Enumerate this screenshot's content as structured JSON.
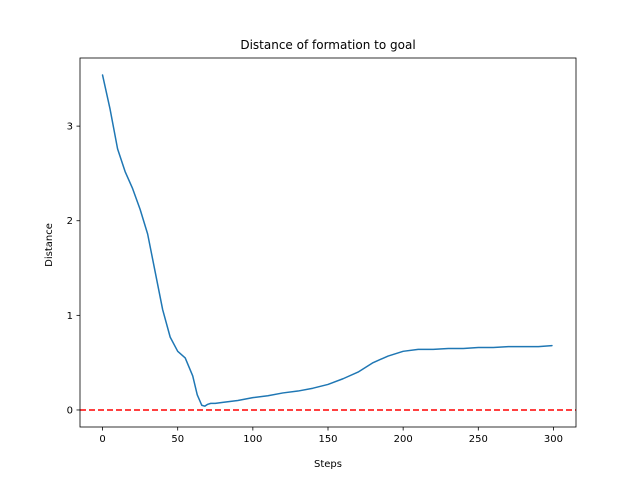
{
  "chart_data": {
    "type": "line",
    "title": "Distance of formation to goal",
    "xlabel": "Steps",
    "ylabel": "Distance",
    "xlim": [
      -15,
      315
    ],
    "ylim": [
      -0.18,
      3.72
    ],
    "x_ticks": [
      0,
      50,
      100,
      150,
      200,
      250,
      300
    ],
    "x_tick_labels": [
      "0",
      "50",
      "100",
      "150",
      "200",
      "250",
      "300"
    ],
    "y_ticks": [
      0,
      1,
      2,
      3
    ],
    "y_tick_labels": [
      "0",
      "1",
      "2",
      "3"
    ],
    "grid": false,
    "series": [
      {
        "color": "#1f77b4",
        "x": [
          0,
          5,
          10,
          15,
          20,
          25,
          30,
          35,
          40,
          45,
          50,
          55,
          60,
          63,
          66,
          68,
          70,
          72,
          75,
          80,
          90,
          100,
          110,
          120,
          130,
          140,
          150,
          160,
          170,
          180,
          190,
          200,
          210,
          220,
          230,
          240,
          250,
          260,
          270,
          280,
          290,
          299
        ],
        "y": [
          3.54,
          3.18,
          2.76,
          2.52,
          2.34,
          2.12,
          1.86,
          1.46,
          1.06,
          0.77,
          0.62,
          0.55,
          0.36,
          0.16,
          0.05,
          0.04,
          0.06,
          0.07,
          0.07,
          0.08,
          0.1,
          0.13,
          0.15,
          0.18,
          0.2,
          0.23,
          0.27,
          0.33,
          0.4,
          0.5,
          0.57,
          0.62,
          0.64,
          0.64,
          0.65,
          0.65,
          0.66,
          0.66,
          0.67,
          0.67,
          0.67,
          0.68
        ]
      }
    ],
    "reference_lines": [
      {
        "y": 0,
        "color": "#ff0000",
        "style": "dashed"
      }
    ]
  }
}
